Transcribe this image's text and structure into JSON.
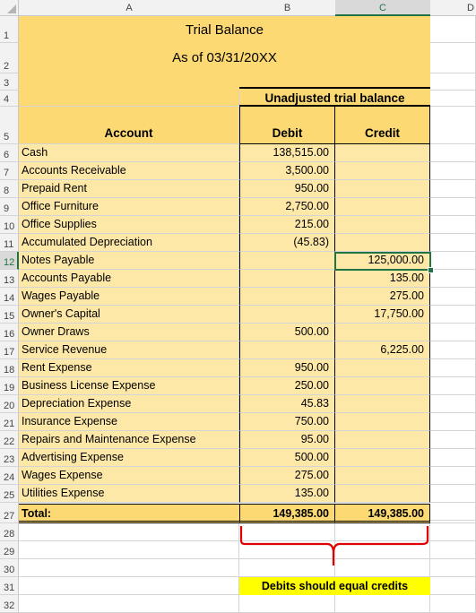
{
  "columns": [
    "A",
    "B",
    "C",
    "D"
  ],
  "rows": [
    "1",
    "2",
    "3",
    "4",
    "5",
    "6",
    "7",
    "8",
    "9",
    "10",
    "11",
    "12",
    "13",
    "14",
    "15",
    "16",
    "17",
    "18",
    "19",
    "20",
    "21",
    "22",
    "23",
    "24",
    "25",
    "26",
    "27",
    "28",
    "29",
    "30",
    "31",
    "32"
  ],
  "title": "Trial Balance",
  "subtitle": "As of 03/31/20XX",
  "section_header": "Unadjusted trial balance",
  "headers": {
    "account": "Account",
    "debit": "Debit",
    "credit": "Credit"
  },
  "entries": [
    {
      "account": "Cash",
      "debit": "138,515.00",
      "credit": ""
    },
    {
      "account": "Accounts Receivable",
      "debit": "3,500.00",
      "credit": ""
    },
    {
      "account": "Prepaid Rent",
      "debit": "950.00",
      "credit": ""
    },
    {
      "account": "Office Furniture",
      "debit": "2,750.00",
      "credit": ""
    },
    {
      "account": "Office Supplies",
      "debit": "215.00",
      "credit": ""
    },
    {
      "account": "Accumulated Depreciation",
      "debit": "(45.83)",
      "credit": ""
    },
    {
      "account": "Notes Payable",
      "debit": "",
      "credit": "125,000.00"
    },
    {
      "account": "Accounts Payable",
      "debit": "",
      "credit": "135.00"
    },
    {
      "account": "Wages Payable",
      "debit": "",
      "credit": "275.00"
    },
    {
      "account": "Owner's Capital",
      "debit": "",
      "credit": "17,750.00"
    },
    {
      "account": "Owner Draws",
      "debit": "500.00",
      "credit": ""
    },
    {
      "account": "Service Revenue",
      "debit": "",
      "credit": "6,225.00"
    },
    {
      "account": "Rent Expense",
      "debit": "950.00",
      "credit": ""
    },
    {
      "account": "Business License Expense",
      "debit": "250.00",
      "credit": ""
    },
    {
      "account": "Depreciation Expense",
      "debit": "45.83",
      "credit": ""
    },
    {
      "account": "Insurance Expense",
      "debit": "750.00",
      "credit": ""
    },
    {
      "account": "Repairs and Maintenance Expense",
      "debit": "95.00",
      "credit": ""
    },
    {
      "account": "Advertising Expense",
      "debit": "500.00",
      "credit": ""
    },
    {
      "account": "Wages Expense",
      "debit": "275.00",
      "credit": ""
    },
    {
      "account": "Utilities Expense",
      "debit": "135.00",
      "credit": ""
    }
  ],
  "total": {
    "label": "Total:",
    "debit": "149,385.00",
    "credit": "149,385.00"
  },
  "note": "Debits should equal credits",
  "colors": {
    "header_fill": "#fcd972",
    "row_fill": "#fde8a8",
    "note_fill": "#ffff00",
    "bracket": "#e00000",
    "selection": "#217346"
  }
}
